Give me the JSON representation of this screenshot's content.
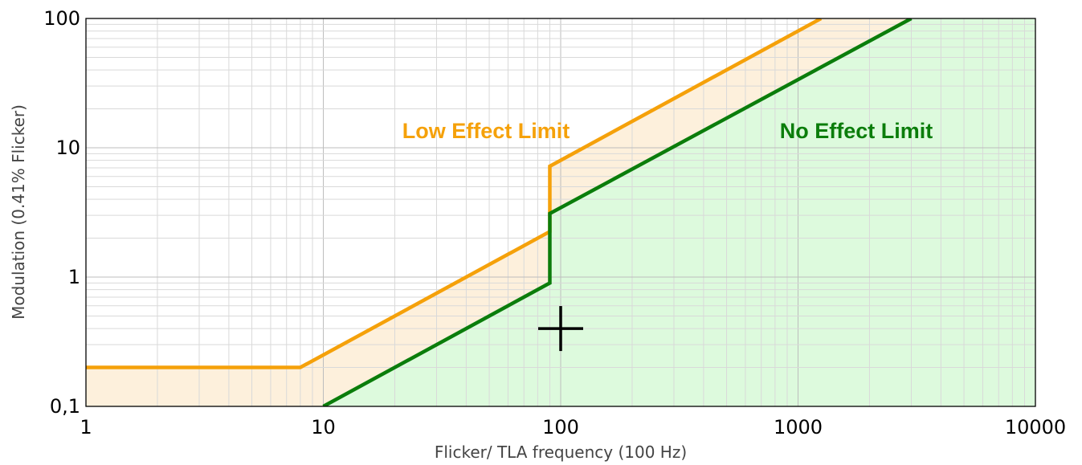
{
  "chart_data": {
    "type": "line",
    "xlabel": "Flicker/ TLA frequency (100 Hz)",
    "ylabel": "Modulation (0.41% Flicker)",
    "x_scale": "log",
    "y_scale": "log",
    "xlim": [
      1,
      10000
    ],
    "ylim": [
      0.1,
      100
    ],
    "grid": true,
    "x_ticks": [
      {
        "value": 1,
        "label": "1"
      },
      {
        "value": 10,
        "label": "10"
      },
      {
        "value": 100,
        "label": "100"
      },
      {
        "value": 1000,
        "label": "1000"
      },
      {
        "value": 10000,
        "label": "10000"
      }
    ],
    "y_ticks": [
      {
        "value": 0.1,
        "label": "0,1"
      },
      {
        "value": 1,
        "label": "1"
      },
      {
        "value": 10,
        "label": "10"
      },
      {
        "value": 100,
        "label": "100"
      }
    ],
    "series": [
      {
        "name": "Low Effect Limit",
        "color": "#f5a10a",
        "fill_color": "#fdf0dc",
        "points": [
          [
            1,
            0.2
          ],
          [
            8,
            0.2
          ],
          [
            90,
            2.25
          ],
          [
            90,
            7.2
          ],
          [
            1250,
            100
          ]
        ]
      },
      {
        "name": "No Effect Limit",
        "color": "#0b7d0b",
        "fill_color": "#ddfadd",
        "points": [
          [
            10,
            0.1
          ],
          [
            90,
            0.9
          ],
          [
            90,
            3.1
          ],
          [
            3000,
            100
          ]
        ]
      }
    ],
    "annotations": [
      {
        "type": "crosshair-marker",
        "x": 100,
        "y": 0.4
      }
    ]
  }
}
